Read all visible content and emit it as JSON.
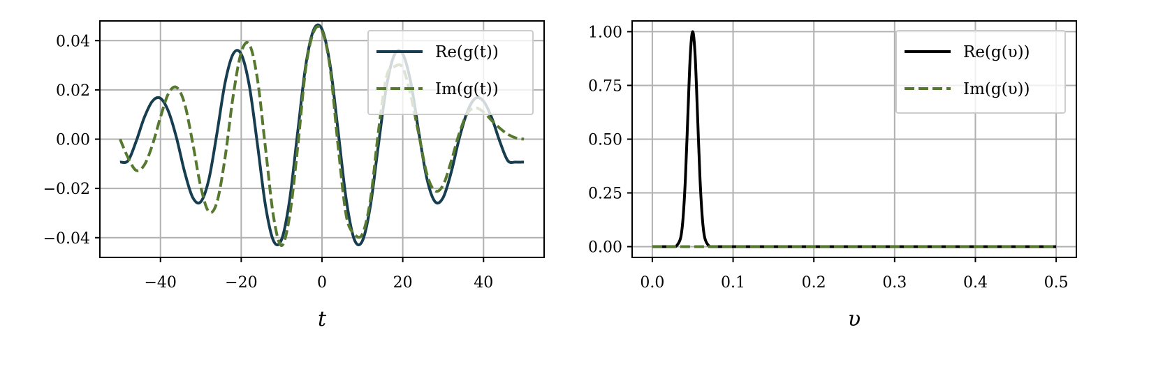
{
  "chart_data": [
    {
      "type": "line",
      "xlabel": "t",
      "ylabel": "",
      "xlim": [
        -55,
        55
      ],
      "ylim": [
        -0.048,
        0.048
      ],
      "xticks": [
        -40,
        -20,
        0,
        20,
        40
      ],
      "xtick_labels": [
        "−40",
        "−20",
        "0",
        "20",
        "40"
      ],
      "yticks": [
        -0.04,
        -0.02,
        0.0,
        0.02,
        0.04
      ],
      "ytick_labels": [
        "−0.04",
        "−0.02",
        "0.00",
        "0.02",
        "0.04"
      ],
      "grid": true,
      "legend_position": "top-right",
      "series": [
        {
          "name": "Re(g(t))",
          "color": "#173e50",
          "style": "solid",
          "x": [
            -50,
            -48,
            -46,
            -44,
            -42,
            -40,
            -38,
            -36,
            -34,
            -32,
            -30,
            -28,
            -26,
            -24,
            -22,
            -20,
            -18,
            -16,
            -14,
            -12,
            -10,
            -8,
            -6,
            -4,
            -2,
            0,
            2,
            4,
            6,
            8,
            10,
            12,
            14,
            16,
            18,
            20,
            22,
            24,
            26,
            28,
            30,
            32,
            34,
            36,
            38,
            40,
            42,
            44,
            46,
            48,
            50
          ],
          "y": [
            -0.0093,
            -0.0087,
            -0.0008,
            0.0088,
            0.0154,
            0.0166,
            0.0112,
            0.0004,
            -0.0134,
            -0.0237,
            -0.0254,
            -0.0162,
            0.0025,
            0.0229,
            0.0346,
            0.0345,
            0.0217,
            -0.0019,
            -0.0269,
            -0.0413,
            -0.0407,
            -0.0245,
            0.0031,
            0.0302,
            0.0446,
            0.0446,
            0.0302,
            0.0031,
            -0.0245,
            -0.0407,
            -0.0413,
            -0.0269,
            -0.0019,
            0.0217,
            0.0345,
            0.0346,
            0.0229,
            0.0025,
            -0.0162,
            -0.0254,
            -0.0237,
            -0.0134,
            0.0004,
            0.0112,
            0.0166,
            0.0154,
            0.0088,
            -0.0008,
            -0.0087,
            -0.0093,
            -0.0093
          ]
        },
        {
          "name": "Im(g(t))",
          "color": "#56792f",
          "style": "dashed",
          "x": [
            -50,
            -48,
            -46,
            -44,
            -42,
            -40,
            -38,
            -36,
            -34,
            -32,
            -30,
            -28,
            -26,
            -24,
            -22,
            -20,
            -18,
            -16,
            -14,
            -12,
            -10,
            -8,
            -6,
            -4,
            -2,
            0,
            2,
            4,
            6,
            8,
            10,
            12,
            14,
            16,
            18,
            20,
            22,
            24,
            26,
            28,
            30,
            32,
            34,
            36,
            38,
            40,
            42,
            44,
            46,
            48,
            50
          ],
          "y": [
            0.0,
            -0.0076,
            -0.0127,
            -0.0105,
            -0.0024,
            0.0089,
            0.0186,
            0.021,
            0.0143,
            -0.0017,
            -0.0195,
            -0.0295,
            -0.0255,
            -0.0075,
            0.0175,
            0.0352,
            0.0385,
            0.0245,
            -0.0035,
            -0.0315,
            -0.0432,
            -0.031,
            -0.003,
            0.029,
            0.0438,
            0.044,
            0.029,
            -0.003,
            -0.031,
            -0.0385,
            -0.0385,
            -0.0245,
            0.0035,
            0.0255,
            0.0295,
            0.029,
            0.0175,
            0.0017,
            -0.0143,
            -0.021,
            -0.0186,
            -0.0089,
            0.0024,
            0.0105,
            0.0127,
            0.011,
            0.0076,
            0.0045,
            0.002,
            0.0005,
            0.0
          ]
        }
      ]
    },
    {
      "type": "line",
      "xlabel": "υ",
      "ylabel": "",
      "xlim": [
        -0.025,
        0.525
      ],
      "ylim": [
        -0.05,
        1.05
      ],
      "xticks": [
        0.0,
        0.1,
        0.2,
        0.3,
        0.4,
        0.5
      ],
      "xtick_labels": [
        "0.0",
        "0.1",
        "0.2",
        "0.3",
        "0.4",
        "0.5"
      ],
      "yticks": [
        0.0,
        0.25,
        0.5,
        0.75,
        1.0
      ],
      "ytick_labels": [
        "0.00",
        "0.25",
        "0.50",
        "0.75",
        "1.00"
      ],
      "grid": true,
      "legend_position": "top-right",
      "series": [
        {
          "name": "Re(g(υ))",
          "color": "#000000",
          "style": "solid",
          "x": [
            0.0,
            0.025,
            0.03,
            0.035,
            0.038,
            0.041,
            0.044,
            0.047,
            0.05,
            0.053,
            0.056,
            0.059,
            0.062,
            0.065,
            0.07,
            0.075,
            0.1,
            0.2,
            0.3,
            0.4,
            0.5
          ],
          "y": [
            0.0,
            0.0,
            0.004,
            0.04,
            0.13,
            0.32,
            0.61,
            0.89,
            1.0,
            0.89,
            0.61,
            0.32,
            0.13,
            0.04,
            0.004,
            0.0,
            0.0,
            0.0,
            0.0,
            0.0,
            0.0
          ]
        },
        {
          "name": "Im(g(υ))",
          "color": "#56792f",
          "style": "dashed",
          "x": [
            0.0,
            0.5
          ],
          "y": [
            0.0,
            0.0
          ]
        }
      ]
    }
  ]
}
